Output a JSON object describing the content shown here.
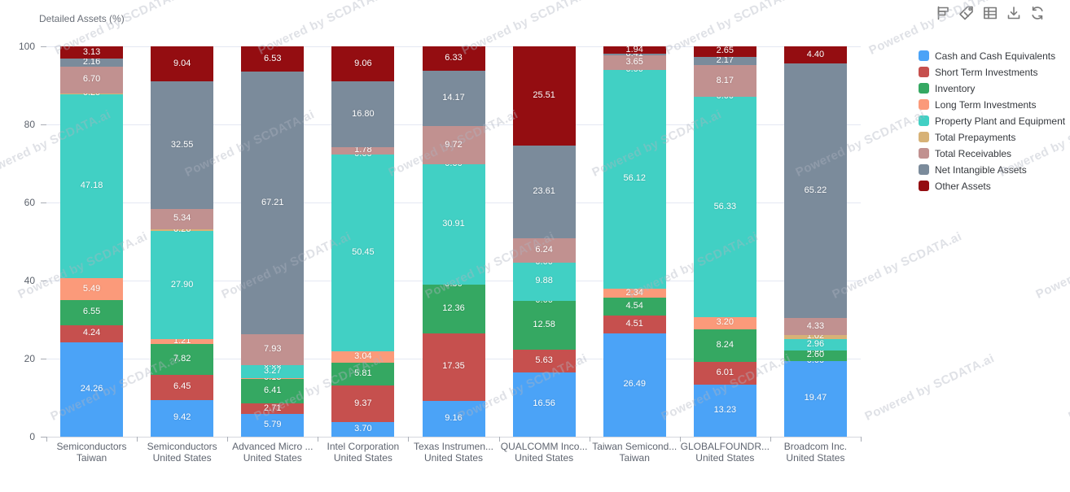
{
  "watermark": "Powered by SCDATA.ai",
  "toolbar": {
    "icons": [
      {
        "name": "flag-icon"
      },
      {
        "name": "tag-icon"
      },
      {
        "name": "table-icon"
      },
      {
        "name": "download-icon"
      },
      {
        "name": "refresh-icon"
      }
    ]
  },
  "chart_data": {
    "type": "bar",
    "stacked": true,
    "title": "Detailed Assets (%)",
    "xlabel": "",
    "ylabel": "Detailed Assets (%)",
    "ylim": [
      0,
      100
    ],
    "yticks": [
      0,
      20,
      40,
      60,
      80,
      100
    ],
    "grid": true,
    "legend_position": "right",
    "value_label_format": "2-decimals",
    "categories": [
      [
        "Semiconductors",
        "Taiwan"
      ],
      [
        "Semiconductors",
        "United States"
      ],
      [
        "Advanced Micro ...",
        "United States"
      ],
      [
        "Intel Corporation",
        "United States"
      ],
      [
        "Texas Instrumen...",
        "United States"
      ],
      [
        "QUALCOMM Inco...",
        "United States"
      ],
      [
        "Taiwan Semicond...",
        "Taiwan"
      ],
      [
        "GLOBALFOUNDR...",
        "United States"
      ],
      [
        "Broadcom Inc.",
        "United States"
      ]
    ],
    "series": [
      {
        "name": "Cash and Cash Equivalents",
        "color": "#4ba3f7",
        "values": [
          24.26,
          9.42,
          5.79,
          3.7,
          9.16,
          16.56,
          26.49,
          13.23,
          19.47
        ]
      },
      {
        "name": "Short Term Investments",
        "color": "#c6504e",
        "values": [
          4.24,
          6.45,
          2.71,
          9.37,
          17.35,
          5.63,
          4.51,
          6.01,
          0.0
        ]
      },
      {
        "name": "Inventory",
        "color": "#35a862",
        "values": [
          6.55,
          7.82,
          6.41,
          5.81,
          12.36,
          12.58,
          4.54,
          8.24,
          2.6
        ]
      },
      {
        "name": "Long Term Investments",
        "color": "#fb9a7a",
        "values": [
          5.49,
          1.21,
          0.15,
          3.04,
          0.0,
          0.0,
          2.34,
          3.2,
          0.0
        ]
      },
      {
        "name": "Property Plant and Equipment",
        "color": "#41d0c4",
        "values": [
          47.18,
          27.9,
          3.27,
          50.45,
          30.91,
          9.88,
          56.12,
          56.33,
          2.96
        ]
      },
      {
        "name": "Total Prepayments",
        "color": "#d7b277",
        "values": [
          0.29,
          0.26,
          0.0,
          0.0,
          0.0,
          0.0,
          0.0,
          0.0,
          1.02
        ]
      },
      {
        "name": "Total Receivables",
        "color": "#c19190",
        "values": [
          6.7,
          5.34,
          7.93,
          1.78,
          9.72,
          6.24,
          3.65,
          8.17,
          4.33
        ]
      },
      {
        "name": "Net Intangible Assets",
        "color": "#7b8b9b",
        "values": [
          2.16,
          32.55,
          67.21,
          16.8,
          14.17,
          23.61,
          0.41,
          2.17,
          65.22
        ]
      },
      {
        "name": "Other Assets",
        "color": "#940d11",
        "values": [
          3.13,
          9.04,
          6.53,
          9.06,
          6.33,
          25.51,
          1.94,
          2.65,
          4.4
        ]
      }
    ]
  }
}
